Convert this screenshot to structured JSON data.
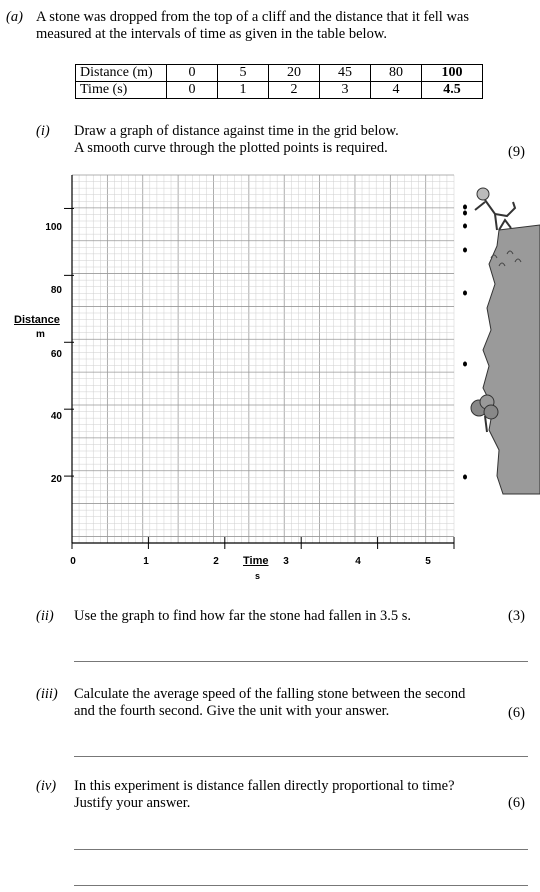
{
  "part_a": {
    "label": "(a)",
    "text_line1": "A stone was dropped from the top of a cliff and the distance that it fell was",
    "text_line2": "measured at the intervals of time as given in the table below."
  },
  "table": {
    "row1_header": "Distance (m)",
    "row2_header": "Time (s)",
    "distances": [
      "0",
      "5",
      "20",
      "45",
      "80",
      "100"
    ],
    "times": [
      "0",
      "1",
      "2",
      "3",
      "4",
      "4.5"
    ]
  },
  "q1": {
    "label": "(i)",
    "line1": "Draw a graph of distance against time in the grid below.",
    "line2": "A smooth curve through the plotted points is required.",
    "marks": "(9)"
  },
  "chart_data": {
    "type": "scatter",
    "title": "",
    "xlabel": "Time",
    "xlabel_unit": "s",
    "ylabel": "Distance",
    "ylabel_unit": "m",
    "x_ticks": [
      "0",
      "1",
      "2",
      "3",
      "4",
      "5"
    ],
    "y_ticks": [
      "20",
      "40",
      "60",
      "80",
      "100"
    ],
    "xlim": [
      0,
      5
    ],
    "ylim": [
      0,
      110
    ],
    "grid": true,
    "series": []
  },
  "q2": {
    "label": "(ii)",
    "line1": "Use the graph to find how far the stone had fallen in 3.5 s.",
    "marks": "(3)"
  },
  "q3": {
    "label": "(iii)",
    "line1": "Calculate the average speed of the falling stone between the second",
    "line2": "and the fourth second.  Give the unit with your answer.",
    "marks": "(6)"
  },
  "q4": {
    "label": "(iv)",
    "line1": "In this experiment is distance fallen directly proportional to time?",
    "line2": "Justify your answer.",
    "marks": "(6)"
  }
}
